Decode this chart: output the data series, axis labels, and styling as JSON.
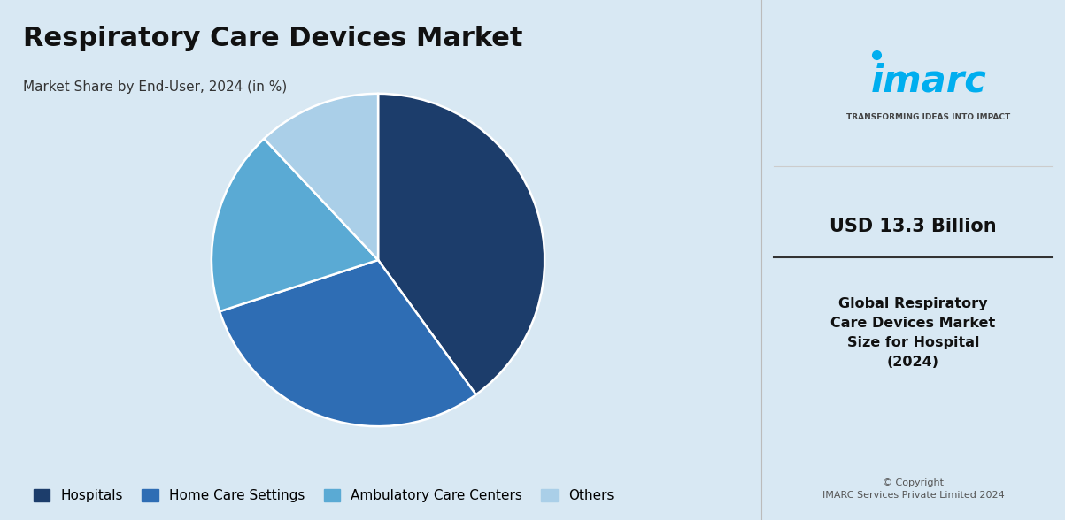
{
  "title": "Respiratory Care Devices Market",
  "subtitle": "Market Share by End-User, 2024 (in %)",
  "labels": [
    "Hospitals",
    "Home Care Settings",
    "Ambulatory Care Centers",
    "Others"
  ],
  "values": [
    40,
    30,
    18,
    12
  ],
  "colors": [
    "#1c3d6b",
    "#2e6db4",
    "#5aaad4",
    "#aacfe8"
  ],
  "background_color": "#d8e8f3",
  "right_panel_color": "#ffffff",
  "title_fontsize": 22,
  "subtitle_fontsize": 11,
  "legend_fontsize": 11,
  "usd_value": "USD 13.3 Billion",
  "usd_desc": "Global Respiratory\nCare Devices Market\nSize for Hospital\n(2024)",
  "copyright": "© Copyright\nIMARC Services Private Limited 2024",
  "startangle": 90
}
